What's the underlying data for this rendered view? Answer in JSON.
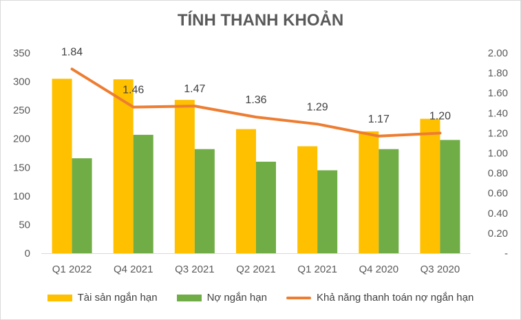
{
  "chart_data": {
    "type": "bar",
    "title": "TÍNH THANH KHOẢN",
    "categories": [
      "Q1 2022",
      "Q4 2021",
      "Q3 2021",
      "Q2 2021",
      "Q1 2021",
      "Q4 2020",
      "Q3 2020"
    ],
    "series": [
      {
        "name": "Tài sản ngắn hạn",
        "type": "bar",
        "axis": "left",
        "color": "#FFC000",
        "values": [
          305,
          304,
          268,
          217,
          187,
          213,
          235
        ]
      },
      {
        "name": "Nợ ngắn hạn",
        "type": "bar",
        "axis": "left",
        "color": "#70AD47",
        "values": [
          166,
          207,
          182,
          160,
          145,
          182,
          198
        ]
      },
      {
        "name": "Khả năng thanh toán nợ ngắn hạn",
        "type": "line",
        "axis": "right",
        "color": "#ED7D31",
        "values": [
          1.84,
          1.46,
          1.47,
          1.36,
          1.29,
          1.17,
          1.2
        ],
        "labels": [
          "1.84",
          "1.46",
          "1.47",
          "1.36",
          "1.29",
          "1.17",
          "1.20"
        ]
      }
    ],
    "ylim_left": [
      0,
      350
    ],
    "yticks_left": [
      "0",
      "50",
      "100",
      "150",
      "200",
      "250",
      "300",
      "350"
    ],
    "ylim_right": [
      0,
      2.0
    ],
    "yticks_right": [
      "-",
      "0.20",
      "0.40",
      "0.60",
      "0.80",
      "1.00",
      "1.20",
      "1.40",
      "1.60",
      "1.80",
      "2.00"
    ],
    "grid": false,
    "legend": "bottom"
  }
}
